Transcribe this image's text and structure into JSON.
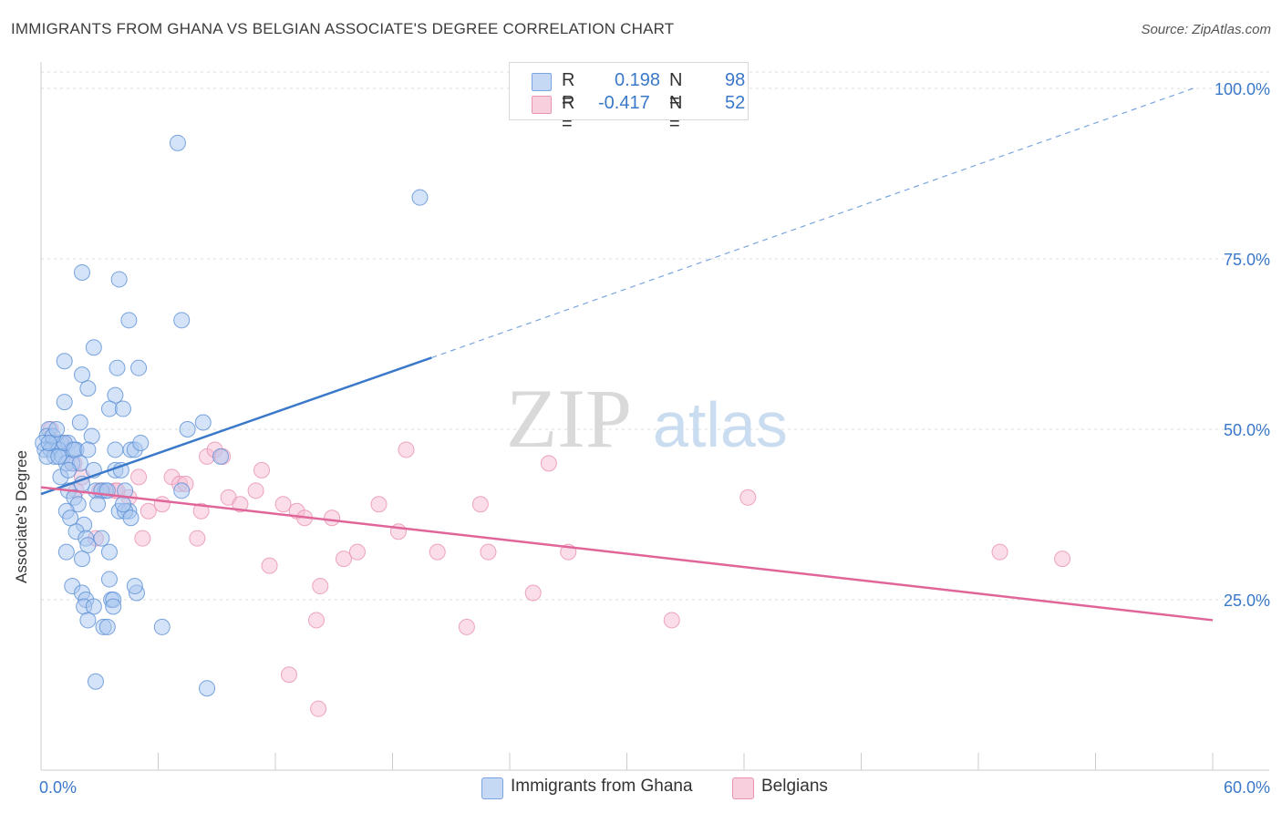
{
  "title": "IMMIGRANTS FROM GHANA VS BELGIAN ASSOCIATE'S DEGREE CORRELATION CHART",
  "source": "Source: ZipAtlas.com",
  "watermark": {
    "zip": "ZIP",
    "atlas": "atlas"
  },
  "colors": {
    "blue": "#3a78c9",
    "blue_fill": "#a9c8f0",
    "pink": "#e0669a",
    "pink_fill": "#f5bcd1",
    "grid": "#dddddd"
  },
  "legend": {
    "rows": [
      {
        "r_label": "R =",
        "r_value": "0.198",
        "n_label": "N =",
        "n_value": "98"
      },
      {
        "r_label": "R =",
        "r_value": "-0.417",
        "n_label": "N =",
        "n_value": "52"
      }
    ]
  },
  "bottom_legend": [
    "Immigrants from Ghana",
    "Belgians"
  ],
  "chart_data": {
    "type": "scatter",
    "ylabel": "Associate's Degree",
    "xlim": [
      0,
      60
    ],
    "ylim": [
      0,
      105
    ],
    "x_tick_labels": [
      "0.0%",
      "60.0%"
    ],
    "y_tick_labels": [
      "25.0%",
      "50.0%",
      "75.0%",
      "100.0%"
    ],
    "y_ticks": [
      25,
      50,
      75,
      100
    ],
    "grid": true,
    "legend_placement": "top-center",
    "series": [
      {
        "name": "Immigrants from Ghana",
        "color": "#3a78c9",
        "points": [
          [
            7.0,
            92
          ],
          [
            19.4,
            84
          ],
          [
            2.1,
            73
          ],
          [
            4.0,
            72
          ],
          [
            4.5,
            66
          ],
          [
            7.2,
            66
          ],
          [
            2.7,
            62
          ],
          [
            1.2,
            60
          ],
          [
            3.9,
            59
          ],
          [
            5.0,
            59
          ],
          [
            2.1,
            58
          ],
          [
            2.4,
            56
          ],
          [
            3.8,
            55
          ],
          [
            1.2,
            54
          ],
          [
            3.5,
            53
          ],
          [
            4.2,
            53
          ],
          [
            2.0,
            51
          ],
          [
            8.3,
            51
          ],
          [
            7.5,
            50
          ],
          [
            0.4,
            50
          ],
          [
            0.3,
            49
          ],
          [
            2.6,
            49
          ],
          [
            0.1,
            48
          ],
          [
            0.6,
            48
          ],
          [
            0.8,
            48
          ],
          [
            1.0,
            48
          ],
          [
            1.4,
            48
          ],
          [
            0.2,
            47
          ],
          [
            0.5,
            47
          ],
          [
            0.9,
            47
          ],
          [
            1.6,
            47
          ],
          [
            1.8,
            47
          ],
          [
            4.6,
            47
          ],
          [
            3.8,
            47
          ],
          [
            4.8,
            47
          ],
          [
            0.7,
            46
          ],
          [
            0.3,
            46
          ],
          [
            1.1,
            46
          ],
          [
            1.3,
            45
          ],
          [
            1.6,
            45
          ],
          [
            9.2,
            46
          ],
          [
            3.8,
            44
          ],
          [
            2.7,
            44
          ],
          [
            4.1,
            44
          ],
          [
            1.0,
            43
          ],
          [
            2.8,
            41
          ],
          [
            3.3,
            41
          ],
          [
            4.3,
            41
          ],
          [
            1.4,
            41
          ],
          [
            3.1,
            41
          ],
          [
            7.2,
            41
          ],
          [
            1.7,
            40
          ],
          [
            2.9,
            39
          ],
          [
            1.9,
            39
          ],
          [
            4.0,
            38
          ],
          [
            4.5,
            38
          ],
          [
            4.3,
            38
          ],
          [
            1.3,
            38
          ],
          [
            1.5,
            37
          ],
          [
            2.2,
            36
          ],
          [
            4.6,
            37
          ],
          [
            1.8,
            35
          ],
          [
            2.3,
            34
          ],
          [
            2.4,
            33
          ],
          [
            1.3,
            32
          ],
          [
            3.5,
            32
          ],
          [
            2.1,
            31
          ],
          [
            1.6,
            27
          ],
          [
            3.5,
            28
          ],
          [
            4.9,
            26
          ],
          [
            2.1,
            26
          ],
          [
            4.8,
            27
          ],
          [
            2.3,
            25
          ],
          [
            3.6,
            25
          ],
          [
            3.7,
            25
          ],
          [
            2.2,
            24
          ],
          [
            3.7,
            24
          ],
          [
            2.7,
            24
          ],
          [
            2.4,
            22
          ],
          [
            3.2,
            21
          ],
          [
            6.2,
            21
          ],
          [
            2.8,
            13
          ],
          [
            8.5,
            12
          ],
          [
            3.4,
            21
          ],
          [
            3.1,
            34
          ],
          [
            0.9,
            46
          ],
          [
            1.2,
            48
          ],
          [
            0.6,
            49
          ],
          [
            1.7,
            47
          ],
          [
            2.4,
            47
          ],
          [
            2.0,
            45
          ],
          [
            0.4,
            48
          ],
          [
            1.4,
            44
          ],
          [
            4.2,
            39
          ],
          [
            3.4,
            41
          ],
          [
            2.1,
            42
          ],
          [
            0.8,
            50
          ],
          [
            5.1,
            48
          ]
        ],
        "trend": {
          "x1": 0,
          "y1": 40.5,
          "x2": 20,
          "y2": 60.5
        },
        "trend_extension": {
          "x1": 20,
          "y1": 60.5,
          "x2": 59,
          "y2": 100
        }
      },
      {
        "name": "Belgians",
        "color": "#e0669a",
        "points": [
          [
            0.5,
            50
          ],
          [
            1.1,
            48
          ],
          [
            1.7,
            45
          ],
          [
            3.1,
            41
          ],
          [
            3.8,
            41
          ],
          [
            5.0,
            43
          ],
          [
            5.5,
            38
          ],
          [
            6.2,
            39
          ],
          [
            6.7,
            43
          ],
          [
            7.1,
            42
          ],
          [
            7.4,
            42
          ],
          [
            8.2,
            38
          ],
          [
            8.5,
            46
          ],
          [
            8.9,
            47
          ],
          [
            9.6,
            40
          ],
          [
            10.2,
            39
          ],
          [
            11.0,
            41
          ],
          [
            11.3,
            44
          ],
          [
            12.4,
            39
          ],
          [
            13.1,
            38
          ],
          [
            13.5,
            37
          ],
          [
            14.9,
            37
          ],
          [
            15.5,
            31
          ],
          [
            16.2,
            32
          ],
          [
            17.3,
            39
          ],
          [
            18.3,
            35
          ],
          [
            18.7,
            47
          ],
          [
            20.3,
            32
          ],
          [
            21.8,
            21
          ],
          [
            22.5,
            39
          ],
          [
            22.9,
            32
          ],
          [
            25.2,
            26
          ],
          [
            26.0,
            45
          ],
          [
            27.0,
            32
          ],
          [
            32.3,
            22
          ],
          [
            36.2,
            40
          ],
          [
            49.1,
            32
          ],
          [
            52.3,
            31
          ],
          [
            11.7,
            30
          ],
          [
            14.3,
            27
          ],
          [
            14.1,
            22
          ],
          [
            12.7,
            14
          ],
          [
            14.2,
            9
          ],
          [
            5.2,
            34
          ],
          [
            8.0,
            34
          ],
          [
            2.8,
            34
          ],
          [
            4.5,
            40
          ],
          [
            3.0,
            41
          ],
          [
            1.8,
            41
          ],
          [
            2.1,
            43
          ],
          [
            9.3,
            46
          ],
          [
            3.9,
            41
          ]
        ],
        "trend": {
          "x1": 0,
          "y1": 41.5,
          "x2": 60,
          "y2": 22
        }
      }
    ]
  }
}
